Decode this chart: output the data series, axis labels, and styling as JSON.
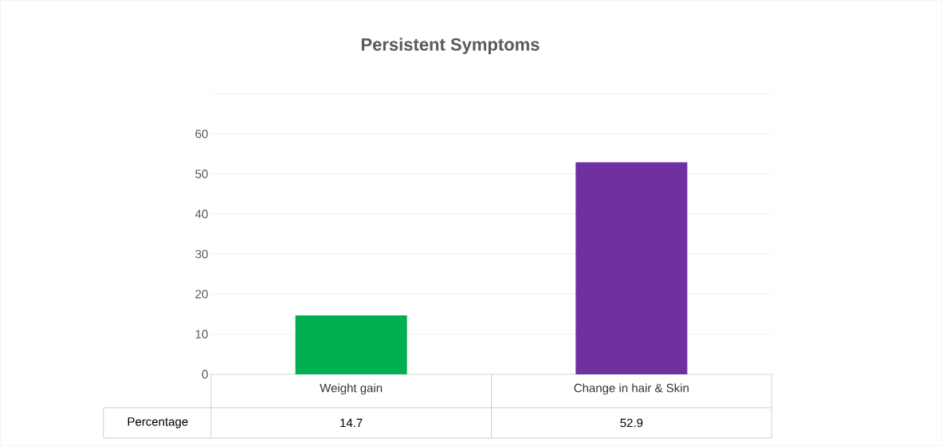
{
  "chart_data": {
    "type": "bar",
    "title": "Persistent Symptoms",
    "categories": [
      "Weight gain",
      "Change in hair & Skin"
    ],
    "series": [
      {
        "name": "Percentage",
        "colors": [
          "#00b050",
          "#7030a0"
        ],
        "values": [
          14.7,
          52.9
        ]
      }
    ],
    "ylim": [
      0,
      70
    ],
    "yticks": [
      0,
      10,
      20,
      30,
      40,
      50,
      60,
      {
        "value": 70,
        "label": null
      }
    ],
    "grid": "y",
    "data_labels": true
  }
}
